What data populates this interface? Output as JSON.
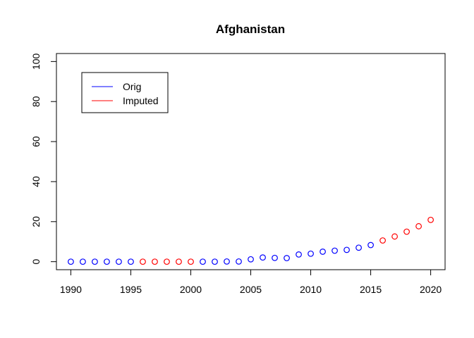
{
  "chart_data": {
    "type": "scatter",
    "title": "Afghanistan",
    "xlabel": "",
    "ylabel": "",
    "xlim": [
      1988.8,
      2021.2
    ],
    "ylim": [
      -4,
      104
    ],
    "x_ticks": [
      1990,
      1995,
      2000,
      2005,
      2010,
      2015,
      2020
    ],
    "y_ticks": [
      0,
      20,
      40,
      60,
      80,
      100
    ],
    "grid": false,
    "legend": {
      "position": "top-left",
      "entries": [
        {
          "label": "Orig",
          "color": "#0000ff"
        },
        {
          "label": "Imputed",
          "color": "#ff0000"
        }
      ]
    },
    "points": [
      {
        "x": 1990,
        "y": 0.0,
        "series": "Orig"
      },
      {
        "x": 1991,
        "y": 0.0,
        "series": "Orig"
      },
      {
        "x": 1992,
        "y": 0.0,
        "series": "Orig"
      },
      {
        "x": 1993,
        "y": 0.0,
        "series": "Orig"
      },
      {
        "x": 1994,
        "y": 0.0,
        "series": "Orig"
      },
      {
        "x": 1995,
        "y": 0.0,
        "series": "Orig"
      },
      {
        "x": 1996,
        "y": 0.0,
        "series": "Imputed"
      },
      {
        "x": 1997,
        "y": 0.0,
        "series": "Imputed"
      },
      {
        "x": 1998,
        "y": 0.0,
        "series": "Imputed"
      },
      {
        "x": 1999,
        "y": 0.0,
        "series": "Imputed"
      },
      {
        "x": 2000,
        "y": 0.0,
        "series": "Imputed"
      },
      {
        "x": 2001,
        "y": 0.0,
        "series": "Orig"
      },
      {
        "x": 2002,
        "y": 0.0,
        "series": "Orig"
      },
      {
        "x": 2003,
        "y": 0.1,
        "series": "Orig"
      },
      {
        "x": 2004,
        "y": 0.1,
        "series": "Orig"
      },
      {
        "x": 2005,
        "y": 1.2,
        "series": "Orig"
      },
      {
        "x": 2006,
        "y": 2.1,
        "series": "Orig"
      },
      {
        "x": 2007,
        "y": 1.9,
        "series": "Orig"
      },
      {
        "x": 2008,
        "y": 1.8,
        "series": "Orig"
      },
      {
        "x": 2009,
        "y": 3.6,
        "series": "Orig"
      },
      {
        "x": 2010,
        "y": 4.0,
        "series": "Orig"
      },
      {
        "x": 2011,
        "y": 5.0,
        "series": "Orig"
      },
      {
        "x": 2012,
        "y": 5.5,
        "series": "Orig"
      },
      {
        "x": 2013,
        "y": 5.9,
        "series": "Orig"
      },
      {
        "x": 2014,
        "y": 7.0,
        "series": "Orig"
      },
      {
        "x": 2015,
        "y": 8.3,
        "series": "Orig"
      },
      {
        "x": 2016,
        "y": 10.6,
        "series": "Imputed"
      },
      {
        "x": 2017,
        "y": 12.6,
        "series": "Imputed"
      },
      {
        "x": 2018,
        "y": 15.0,
        "series": "Imputed"
      },
      {
        "x": 2019,
        "y": 17.7,
        "series": "Imputed"
      },
      {
        "x": 2020,
        "y": 20.9,
        "series": "Imputed"
      }
    ]
  }
}
